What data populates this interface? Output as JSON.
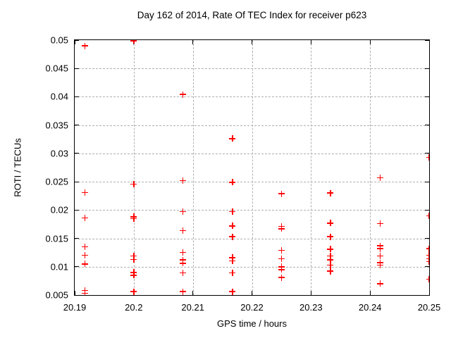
{
  "page": {
    "background": "#ffffff"
  },
  "chart_data": {
    "type": "scatter",
    "title": "Day 162 of 2014, Rate Of TEC Index for receiver p623",
    "xlabel": "GPS time / hours",
    "ylabel": "ROTI / TECUs",
    "xlim": [
      20.19,
      20.25
    ],
    "ylim": [
      0.005,
      0.05
    ],
    "grid": true,
    "legend": "none",
    "marker": "plus",
    "marker_color": "#ff0000",
    "axis_color": "#000000",
    "grid_color": "#b0b0b0",
    "xticks": [
      {
        "v": 20.19,
        "label": "20.19"
      },
      {
        "v": 20.2,
        "label": "20.2"
      },
      {
        "v": 20.21,
        "label": "20.21"
      },
      {
        "v": 20.22,
        "label": "20.22"
      },
      {
        "v": 20.23,
        "label": "20.23"
      },
      {
        "v": 20.24,
        "label": "20.24"
      },
      {
        "v": 20.25,
        "label": "20.25"
      }
    ],
    "yticks": [
      {
        "v": 0.005,
        "label": "0.005"
      },
      {
        "v": 0.01,
        "label": "0.01"
      },
      {
        "v": 0.015,
        "label": "0.015"
      },
      {
        "v": 0.02,
        "label": "0.02"
      },
      {
        "v": 0.025,
        "label": "0.025"
      },
      {
        "v": 0.03,
        "label": "0.03"
      },
      {
        "v": 0.035,
        "label": "0.035"
      },
      {
        "v": 0.04,
        "label": "0.04"
      },
      {
        "v": 0.045,
        "label": "0.045"
      },
      {
        "v": 0.05,
        "label": "0.05"
      }
    ],
    "series": [
      {
        "name": "ROTI",
        "points": [
          [
            20.1917,
            0.049
          ],
          [
            20.1917,
            0.0231
          ],
          [
            20.1917,
            0.0186
          ],
          [
            20.1917,
            0.0135
          ],
          [
            20.1917,
            0.012
          ],
          [
            20.1917,
            0.0105
          ],
          [
            20.1917,
            0.0058
          ],
          [
            20.1917,
            0.0053
          ],
          [
            20.2,
            0.0499
          ],
          [
            20.2,
            0.0246
          ],
          [
            20.2,
            0.0188
          ],
          [
            20.2,
            0.0185
          ],
          [
            20.2,
            0.0119
          ],
          [
            20.2,
            0.0113
          ],
          [
            20.2,
            0.009
          ],
          [
            20.2,
            0.0085
          ],
          [
            20.2,
            0.0056
          ],
          [
            20.2083,
            0.0404
          ],
          [
            20.2083,
            0.0252
          ],
          [
            20.2083,
            0.0197
          ],
          [
            20.2083,
            0.0164
          ],
          [
            20.2083,
            0.0125
          ],
          [
            20.2083,
            0.0112
          ],
          [
            20.2083,
            0.0106
          ],
          [
            20.2083,
            0.0089
          ],
          [
            20.2083,
            0.0056
          ],
          [
            20.2167,
            0.0326
          ],
          [
            20.2167,
            0.0249
          ],
          [
            20.2167,
            0.0197
          ],
          [
            20.2167,
            0.0172
          ],
          [
            20.2167,
            0.0153
          ],
          [
            20.2167,
            0.0116
          ],
          [
            20.2167,
            0.011
          ],
          [
            20.2167,
            0.0089
          ],
          [
            20.2167,
            0.0056
          ],
          [
            20.225,
            0.0229
          ],
          [
            20.225,
            0.0171
          ],
          [
            20.225,
            0.0167
          ],
          [
            20.225,
            0.0129
          ],
          [
            20.225,
            0.0114
          ],
          [
            20.225,
            0.01
          ],
          [
            20.225,
            0.0095
          ],
          [
            20.225,
            0.0081
          ],
          [
            20.2333,
            0.023
          ],
          [
            20.2333,
            0.0177
          ],
          [
            20.2333,
            0.0153
          ],
          [
            20.2333,
            0.0131
          ],
          [
            20.2333,
            0.0119
          ],
          [
            20.2333,
            0.0112
          ],
          [
            20.2333,
            0.0103
          ],
          [
            20.2333,
            0.0092
          ],
          [
            20.2417,
            0.0257
          ],
          [
            20.2417,
            0.0176
          ],
          [
            20.2417,
            0.0137
          ],
          [
            20.2417,
            0.0132
          ],
          [
            20.2417,
            0.0119
          ],
          [
            20.2417,
            0.0107
          ],
          [
            20.2417,
            0.0103
          ],
          [
            20.2417,
            0.007
          ],
          [
            20.25,
            0.0293
          ],
          [
            20.25,
            0.019
          ],
          [
            20.25,
            0.0132
          ],
          [
            20.25,
            0.012
          ],
          [
            20.25,
            0.0114
          ],
          [
            20.25,
            0.0109
          ],
          [
            20.25,
            0.0078
          ]
        ]
      }
    ]
  }
}
